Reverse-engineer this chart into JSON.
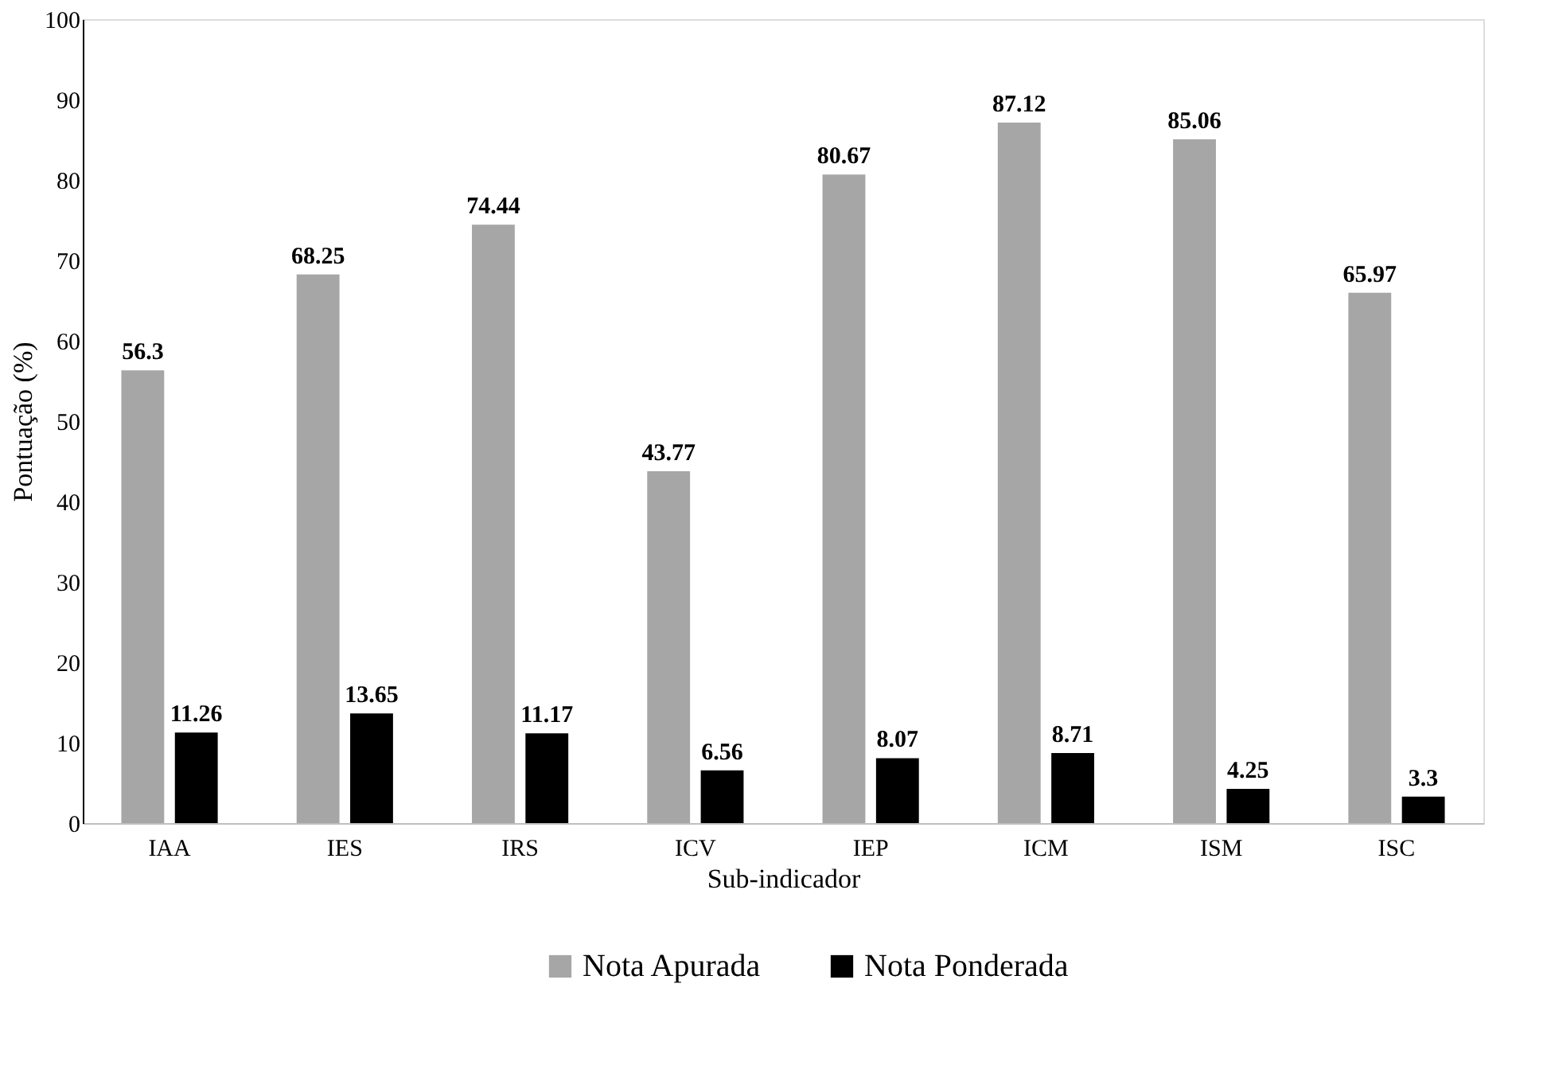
{
  "chart_data": {
    "type": "bar",
    "xlabel": "Sub-indicador",
    "ylabel": "Pontuação (%)",
    "categories": [
      "IAA",
      "IES",
      "IRS",
      "ICV",
      "IEP",
      "ICM",
      "ISM",
      "ISC"
    ],
    "series": [
      {
        "name": "Nota Apurada",
        "color": "#a6a6a6",
        "values": [
          56.3,
          68.25,
          74.44,
          43.77,
          80.67,
          87.12,
          85.06,
          65.97
        ]
      },
      {
        "name": "Nota Ponderada",
        "color": "#000000",
        "values": [
          11.26,
          13.65,
          11.17,
          6.56,
          8.07,
          8.71,
          4.25,
          3.3
        ]
      }
    ],
    "ylim": [
      0,
      100
    ],
    "yticks": [
      0,
      10,
      20,
      30,
      40,
      50,
      60,
      70,
      80,
      90,
      100
    ],
    "data_labels": true,
    "grid": false,
    "legend": "bottom"
  }
}
